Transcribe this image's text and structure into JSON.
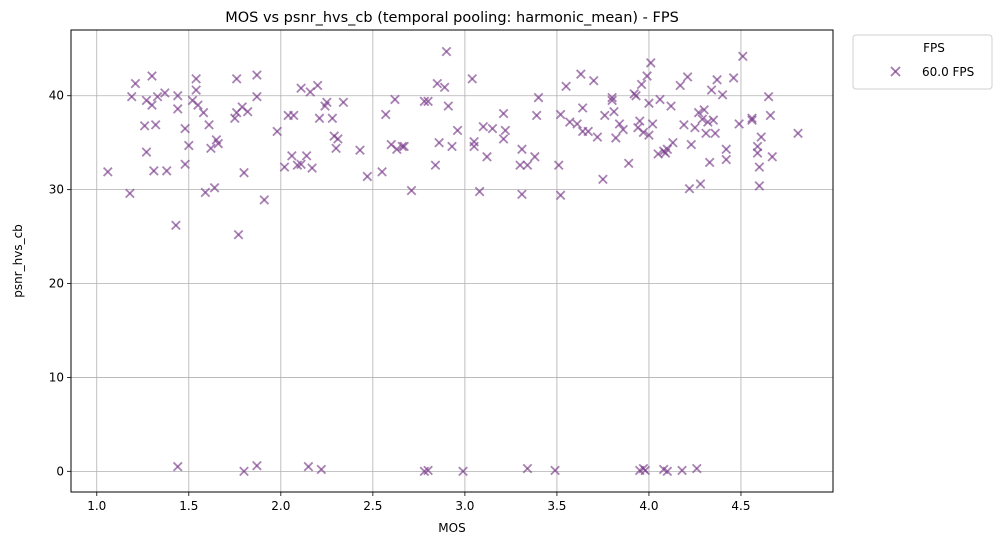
{
  "chart_data": {
    "type": "scatter",
    "title": "MOS vs psnr_hvs_cb (temporal pooling: harmonic_mean) - FPS",
    "xlabel": "MOS",
    "ylabel": "psnr_hvs_cb",
    "xlim": [
      0.86,
      5.0
    ],
    "ylim": [
      -2.2,
      47.0
    ],
    "xticks": [
      1.0,
      1.5,
      2.0,
      2.5,
      3.0,
      3.5,
      4.0,
      4.5
    ],
    "xtick_labels": [
      "1.0",
      "1.5",
      "2.0",
      "2.5",
      "3.0",
      "3.5",
      "4.0",
      "4.5"
    ],
    "yticks": [
      0,
      10,
      20,
      30,
      40
    ],
    "ytick_labels": [
      "0",
      "10",
      "20",
      "30",
      "40"
    ],
    "grid": true,
    "marker": "x",
    "legend": {
      "title": "FPS",
      "placement": "outside-top-right"
    },
    "series": [
      {
        "name": "60.0 FPS",
        "color": "#7b3f8c",
        "points": [
          [
            1.06,
            31.9
          ],
          [
            1.18,
            29.6
          ],
          [
            1.19,
            39.9
          ],
          [
            1.21,
            41.3
          ],
          [
            1.26,
            36.8
          ],
          [
            1.27,
            34.0
          ],
          [
            1.27,
            39.5
          ],
          [
            1.3,
            42.1
          ],
          [
            1.3,
            39.0
          ],
          [
            1.31,
            32.0
          ],
          [
            1.32,
            36.9
          ],
          [
            1.33,
            39.9
          ],
          [
            1.37,
            40.3
          ],
          [
            1.38,
            32.0
          ],
          [
            1.43,
            26.2
          ],
          [
            1.44,
            38.6
          ],
          [
            1.44,
            40.0
          ],
          [
            1.48,
            32.7
          ],
          [
            1.48,
            36.5
          ],
          [
            1.5,
            34.7
          ],
          [
            1.52,
            39.5
          ],
          [
            1.54,
            41.8
          ],
          [
            1.54,
            40.6
          ],
          [
            1.55,
            39.0
          ],
          [
            1.58,
            38.2
          ],
          [
            1.59,
            29.7
          ],
          [
            1.61,
            36.9
          ],
          [
            1.62,
            34.4
          ],
          [
            1.64,
            30.2
          ],
          [
            1.65,
            35.3
          ],
          [
            1.66,
            34.9
          ],
          [
            1.75,
            37.6
          ],
          [
            1.76,
            41.8
          ],
          [
            1.76,
            38.2
          ],
          [
            1.77,
            25.2
          ],
          [
            1.79,
            38.8
          ],
          [
            1.8,
            31.8
          ],
          [
            1.82,
            38.3
          ],
          [
            1.87,
            42.2
          ],
          [
            1.87,
            39.9
          ],
          [
            1.91,
            28.9
          ],
          [
            1.98,
            36.2
          ],
          [
            2.02,
            32.4
          ],
          [
            2.04,
            37.9
          ],
          [
            2.06,
            33.6
          ],
          [
            2.07,
            37.9
          ],
          [
            2.09,
            32.6
          ],
          [
            2.11,
            32.7
          ],
          [
            2.11,
            40.8
          ],
          [
            2.14,
            33.6
          ],
          [
            2.16,
            40.4
          ],
          [
            2.17,
            32.3
          ],
          [
            2.2,
            41.1
          ],
          [
            2.21,
            37.6
          ],
          [
            2.24,
            38.9
          ],
          [
            2.25,
            39.3
          ],
          [
            2.28,
            37.6
          ],
          [
            2.29,
            35.7
          ],
          [
            2.3,
            34.4
          ],
          [
            2.31,
            35.4
          ],
          [
            2.34,
            39.3
          ],
          [
            2.43,
            34.2
          ],
          [
            2.47,
            31.4
          ],
          [
            2.55,
            31.9
          ],
          [
            2.57,
            38.0
          ],
          [
            2.6,
            34.8
          ],
          [
            2.62,
            39.6
          ],
          [
            2.63,
            34.3
          ],
          [
            2.66,
            34.6
          ],
          [
            2.67,
            34.6
          ],
          [
            2.71,
            29.9
          ],
          [
            2.78,
            39.4
          ],
          [
            2.8,
            39.4
          ],
          [
            2.84,
            32.6
          ],
          [
            2.85,
            41.3
          ],
          [
            2.86,
            35.0
          ],
          [
            2.89,
            40.9
          ],
          [
            2.9,
            44.7
          ],
          [
            2.91,
            38.9
          ],
          [
            2.93,
            34.6
          ],
          [
            2.96,
            36.3
          ],
          [
            3.04,
            41.8
          ],
          [
            3.05,
            35.1
          ],
          [
            3.05,
            34.6
          ],
          [
            3.08,
            29.8
          ],
          [
            3.1,
            36.7
          ],
          [
            3.12,
            33.5
          ],
          [
            3.15,
            36.5
          ],
          [
            3.21,
            35.4
          ],
          [
            3.21,
            38.1
          ],
          [
            3.22,
            36.3
          ],
          [
            3.3,
            32.6
          ],
          [
            3.31,
            34.3
          ],
          [
            3.31,
            29.5
          ],
          [
            3.34,
            32.6
          ],
          [
            3.38,
            33.5
          ],
          [
            3.39,
            37.9
          ],
          [
            3.4,
            39.8
          ],
          [
            3.51,
            32.6
          ],
          [
            3.52,
            29.4
          ],
          [
            3.52,
            38.0
          ],
          [
            3.55,
            41.0
          ],
          [
            3.57,
            37.2
          ],
          [
            3.61,
            37.0
          ],
          [
            3.63,
            42.3
          ],
          [
            3.64,
            36.2
          ],
          [
            3.64,
            38.7
          ],
          [
            3.67,
            36.2
          ],
          [
            3.7,
            41.6
          ],
          [
            3.72,
            35.6
          ],
          [
            3.75,
            31.1
          ],
          [
            3.76,
            37.9
          ],
          [
            3.8,
            39.8
          ],
          [
            3.8,
            39.5
          ],
          [
            3.81,
            38.3
          ],
          [
            3.82,
            35.5
          ],
          [
            3.84,
            37.0
          ],
          [
            3.86,
            36.4
          ],
          [
            3.89,
            32.8
          ],
          [
            3.92,
            40.2
          ],
          [
            3.93,
            40.0
          ],
          [
            3.94,
            36.6
          ],
          [
            3.96,
            41.2
          ],
          [
            3.95,
            37.3
          ],
          [
            3.97,
            36.1
          ],
          [
            3.99,
            42.1
          ],
          [
            4.0,
            35.8
          ],
          [
            4.0,
            39.2
          ],
          [
            4.01,
            43.5
          ],
          [
            4.02,
            37.0
          ],
          [
            4.05,
            33.8
          ],
          [
            4.06,
            39.6
          ],
          [
            4.08,
            34.1
          ],
          [
            4.09,
            33.9
          ],
          [
            4.1,
            34.3
          ],
          [
            4.12,
            38.9
          ],
          [
            4.13,
            35.0
          ],
          [
            4.17,
            41.1
          ],
          [
            4.19,
            36.9
          ],
          [
            4.21,
            42.0
          ],
          [
            4.22,
            30.1
          ],
          [
            4.23,
            34.8
          ],
          [
            4.25,
            36.6
          ],
          [
            4.27,
            38.2
          ],
          [
            4.28,
            30.6
          ],
          [
            4.29,
            37.5
          ],
          [
            4.3,
            38.5
          ],
          [
            4.31,
            36.0
          ],
          [
            4.32,
            37.2
          ],
          [
            4.33,
            32.9
          ],
          [
            4.34,
            40.6
          ],
          [
            4.35,
            37.4
          ],
          [
            4.36,
            36.0
          ],
          [
            4.37,
            41.7
          ],
          [
            4.4,
            40.1
          ],
          [
            4.42,
            33.2
          ],
          [
            4.42,
            34.3
          ],
          [
            4.46,
            41.9
          ],
          [
            4.49,
            37.0
          ],
          [
            4.51,
            44.2
          ],
          [
            4.56,
            37.4
          ],
          [
            4.56,
            37.6
          ],
          [
            4.59,
            34.6
          ],
          [
            4.59,
            33.9
          ],
          [
            4.6,
            30.4
          ],
          [
            4.6,
            32.4
          ],
          [
            4.61,
            35.6
          ],
          [
            4.65,
            39.9
          ],
          [
            4.66,
            37.9
          ],
          [
            4.67,
            33.5
          ],
          [
            4.81,
            36.0
          ],
          [
            1.44,
            0.5
          ],
          [
            1.8,
            0.0
          ],
          [
            1.87,
            0.6
          ],
          [
            2.15,
            0.5
          ],
          [
            2.22,
            0.2
          ],
          [
            2.78,
            0.0
          ],
          [
            2.8,
            0.1
          ],
          [
            2.99,
            0.0
          ],
          [
            3.34,
            0.3
          ],
          [
            3.49,
            0.1
          ],
          [
            3.95,
            0.1
          ],
          [
            3.97,
            0.3
          ],
          [
            3.98,
            0.1
          ],
          [
            4.08,
            0.2
          ],
          [
            4.1,
            0.0
          ],
          [
            4.18,
            0.1
          ],
          [
            4.26,
            0.3
          ]
        ]
      }
    ]
  }
}
